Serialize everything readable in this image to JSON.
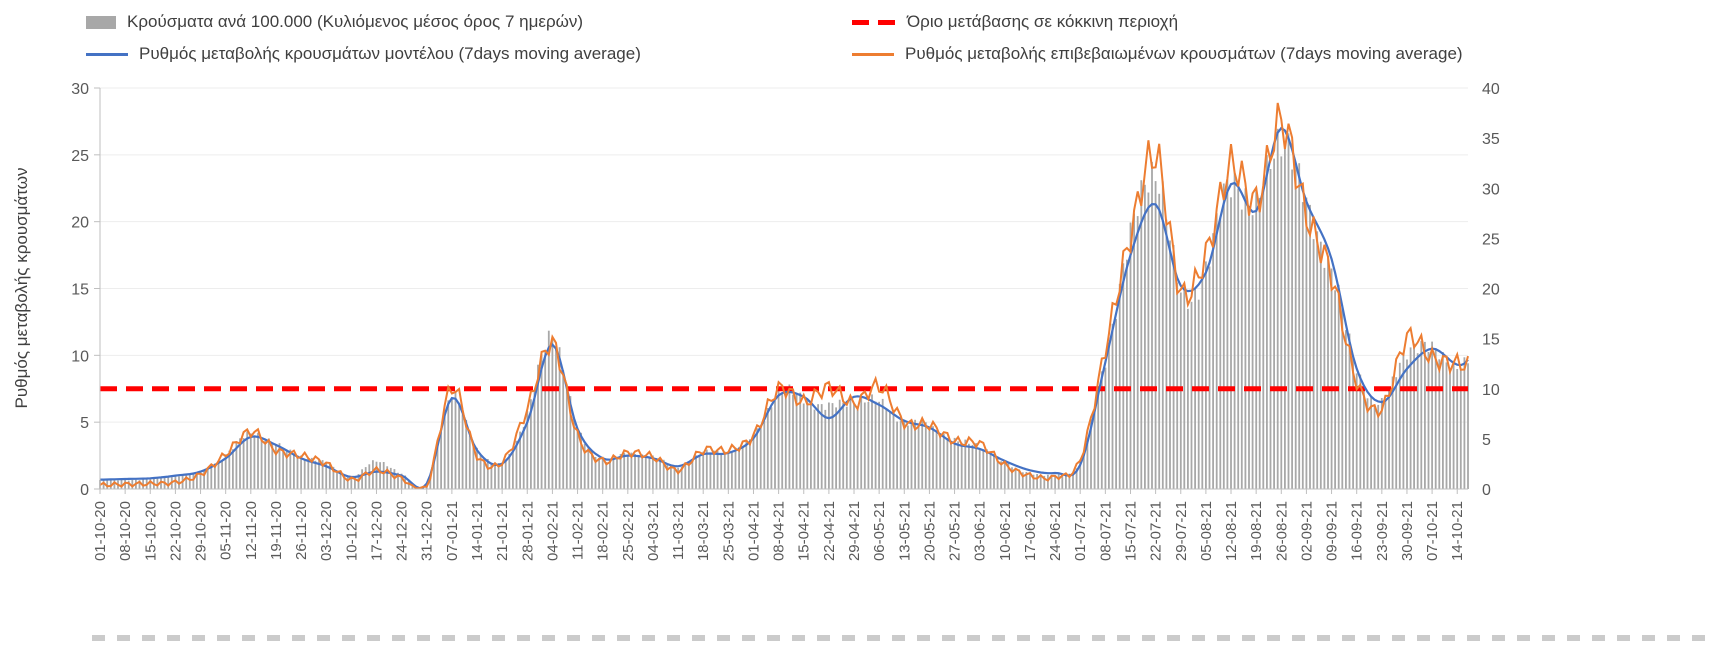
{
  "legend": {
    "bars_label": "Κρούσματα ανά 100.000 (Κυλιόμενος μέσος όρος 7 ημερών)",
    "threshold_label": "Όριο μετάβασης σε κόκκινη περιοχή",
    "model_label": "Ρυθμός μεταβολής κρουσμάτων μοντέλου (7days moving average)",
    "confirmed_label": "Ρυθμός μεταβολής επιβεβαιωμένων κρουσμάτων (7days moving average)"
  },
  "colors": {
    "bars": "#a8a8a8",
    "model": "#4472c4",
    "confirmed": "#ed7d31",
    "threshold": "#ff0000",
    "axis": "#bfbfbf",
    "grid": "#ededed",
    "tick_text": "#595959",
    "legend_text": "#3f3f3f"
  },
  "chart_data": {
    "type": "bar",
    "title": "",
    "ylabel_left": "Ρυθμός μεταβολής κρουσμάτων",
    "left_axis": {
      "min": 0,
      "max": 30,
      "ticks": [
        0,
        5,
        10,
        15,
        20,
        25,
        30
      ]
    },
    "right_axis": {
      "min": 0,
      "max": 40,
      "ticks": [
        0,
        5,
        10,
        15,
        20,
        25,
        30,
        35,
        40
      ]
    },
    "threshold_left_value": 7.5,
    "legend_position": "top",
    "grid": true,
    "categories": [
      "01-10-20",
      "08-10-20",
      "15-10-20",
      "22-10-20",
      "29-10-20",
      "05-11-20",
      "12-11-20",
      "19-11-20",
      "26-11-20",
      "03-12-20",
      "10-12-20",
      "17-12-20",
      "24-12-20",
      "31-12-20",
      "07-01-21",
      "14-01-21",
      "21-01-21",
      "28-01-21",
      "04-02-21",
      "11-02-21",
      "18-02-21",
      "25-02-21",
      "04-03-21",
      "11-03-21",
      "18-03-21",
      "25-03-21",
      "01-04-21",
      "08-04-21",
      "15-04-21",
      "22-04-21",
      "29-04-21",
      "06-05-21",
      "13-05-21",
      "20-05-21",
      "27-05-21",
      "03-06-21",
      "10-06-21",
      "17-06-21",
      "24-06-21",
      "01-07-21",
      "08-07-21",
      "15-07-21",
      "22-07-21",
      "29-07-21",
      "05-08-21",
      "12-08-21",
      "19-08-21",
      "26-08-21",
      "02-09-21",
      "09-09-21",
      "16-09-21",
      "23-09-21",
      "30-09-21",
      "07-10-21",
      "14-10-21"
    ],
    "series": [
      {
        "name": "Κρούσματα ανά 100.000 (Κυλιόμενος μέσος όρος 7 ημερών)",
        "type": "bar",
        "axis": "right",
        "values": [
          0.9,
          0.9,
          1.0,
          1.3,
          1.7,
          3.4,
          5.6,
          4.4,
          3.3,
          2.6,
          1.2,
          2.8,
          1.5,
          0.6,
          9.2,
          4.0,
          2.6,
          7.5,
          15.5,
          6.0,
          3.0,
          3.5,
          3.2,
          2.2,
          3.6,
          3.8,
          5.2,
          9.6,
          9.0,
          8.2,
          8.8,
          8.6,
          6.8,
          6.3,
          4.8,
          4.3,
          2.6,
          1.6,
          1.4,
          2.8,
          13.0,
          25.0,
          32.0,
          19.5,
          22.0,
          31.0,
          28.0,
          35.5,
          28.0,
          22.0,
          12.0,
          8.5,
          14.0,
          13.8,
          12.4
        ]
      },
      {
        "name": "Ρυθμός μεταβολής κρουσμάτων μοντέλου (7days moving average)",
        "type": "line",
        "axis": "left",
        "values": [
          0.7,
          0.75,
          0.8,
          1.0,
          1.3,
          2.3,
          3.9,
          3.3,
          2.3,
          1.7,
          0.9,
          1.3,
          1.0,
          0.4,
          6.8,
          2.9,
          1.9,
          5.0,
          10.8,
          4.5,
          2.3,
          2.5,
          2.3,
          1.7,
          2.6,
          2.7,
          3.8,
          7.0,
          6.9,
          5.3,
          6.9,
          6.3,
          5.1,
          4.6,
          3.4,
          3.0,
          2.1,
          1.4,
          1.2,
          1.8,
          9.5,
          17.5,
          21.3,
          15.2,
          16.2,
          22.8,
          20.8,
          27.0,
          21.5,
          17.2,
          9.0,
          6.5,
          9.0,
          10.5,
          9.3
        ]
      },
      {
        "name": "Ρυθμός μεταβολής επιβεβαιωμένων κρουσμάτων (7days moving average)",
        "type": "line",
        "axis": "left",
        "values": [
          0.3,
          0.35,
          0.4,
          0.5,
          1.1,
          2.6,
          4.3,
          2.9,
          2.5,
          1.9,
          0.7,
          1.4,
          0.8,
          0.2,
          7.6,
          2.5,
          2.0,
          6.0,
          10.9,
          4.0,
          2.1,
          2.7,
          2.4,
          1.4,
          2.9,
          2.9,
          4.0,
          7.5,
          6.5,
          7.6,
          6.4,
          7.7,
          5.0,
          4.8,
          3.6,
          3.4,
          1.8,
          1.0,
          0.9,
          2.2,
          10.5,
          19.0,
          25.0,
          14.8,
          17.5,
          24.2,
          21.5,
          27.5,
          20.5,
          16.0,
          8.0,
          6.0,
          11.3,
          9.8,
          9.4
        ]
      },
      {
        "name": "Όριο μετάβασης σε κόκκινη περιοχή",
        "type": "threshold",
        "axis": "left",
        "value": 7.5
      }
    ]
  }
}
